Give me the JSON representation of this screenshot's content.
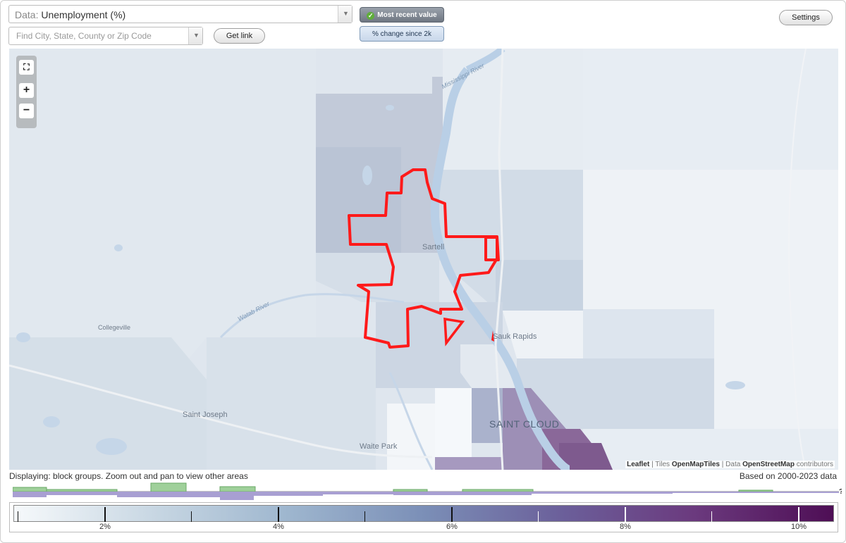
{
  "controls": {
    "data_prefix": "Data:",
    "data_value": "Unemployment (%)",
    "search_placeholder": "Find City, State, County or Zip Code",
    "get_link_label": "Get link",
    "mode_recent_label": "Most recent value",
    "mode_change_label": "% change since 2k",
    "settings_label": "Settings",
    "dropdown_arrow": "▼"
  },
  "map": {
    "zoom_fullscreen": "⛶",
    "zoom_in": "+",
    "zoom_out": "−",
    "places": {
      "sartell": "Sartell",
      "sauk_rapids": "Sauk Rapids",
      "saint_cloud": "SAINT CLOUD",
      "saint_joseph": "Saint Joseph",
      "waite_park": "Waite Park",
      "collegeville": "Collegeville",
      "watab_river": "Watab River",
      "mississippi": "Mississippi River"
    },
    "attribution": {
      "leaflet": "Leaflet",
      "sep1": " | Tiles ",
      "tiles": "OpenMapTiles",
      "sep2": " | Data ",
      "data": "OpenStreetMap",
      "contrib": " contributors"
    },
    "highlight_color": "#ff1a1a"
  },
  "status": {
    "displaying": "Displaying: block groups. Zoom out and pan to view other areas",
    "based_on": "Based on 2000-2023 data",
    "unknown_marker": "?"
  },
  "legend": {
    "labels": [
      "2%",
      "4%",
      "6%",
      "8%",
      "10%"
    ],
    "colors": [
      "#f6f9fb",
      "#c8d7e3",
      "#9fb7cf",
      "#7b8fb7",
      "#6b5f9a",
      "#6b3a7e",
      "#4e0e55"
    ]
  }
}
